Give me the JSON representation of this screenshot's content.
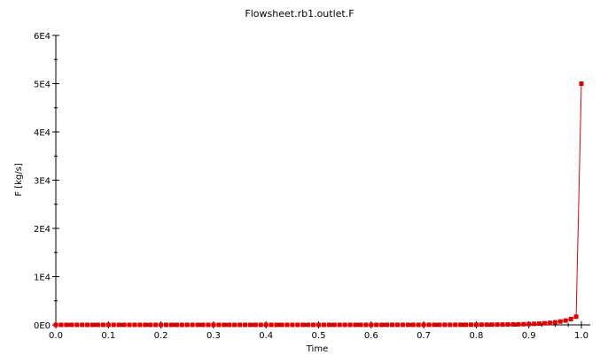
{
  "chart_data": {
    "type": "line",
    "title": "Flowsheet.rb1.outlet.F",
    "xlabel": "Time",
    "ylabel": "F [kg/s]",
    "xlim": [
      0.0,
      1.0
    ],
    "ylim": [
      0,
      60000
    ],
    "xticks": [
      0.0,
      0.1,
      0.2,
      0.3,
      0.4,
      0.5,
      0.6,
      0.7,
      0.8,
      0.9,
      1.0
    ],
    "xtick_labels": [
      "0.0",
      "0.1",
      "0.2",
      "0.3",
      "0.4",
      "0.5",
      "0.6",
      "0.7",
      "0.8",
      "0.9",
      "1.0"
    ],
    "yticks": [
      0,
      10000,
      20000,
      30000,
      40000,
      50000,
      60000
    ],
    "ytick_labels": [
      "0E0",
      "1E4",
      "2E4",
      "3E4",
      "4E4",
      "5E4",
      "6E4"
    ],
    "grid": false,
    "series": [
      {
        "color": "#e00000",
        "marker": "square",
        "x": [
          0.0,
          0.01,
          0.02,
          0.03,
          0.04,
          0.05,
          0.06,
          0.07,
          0.08,
          0.09,
          0.1,
          0.11,
          0.12,
          0.13,
          0.14,
          0.15,
          0.16,
          0.17,
          0.18,
          0.19,
          0.2,
          0.21,
          0.22,
          0.23,
          0.24,
          0.25,
          0.26,
          0.27,
          0.28,
          0.29,
          0.3,
          0.31,
          0.32,
          0.33,
          0.34,
          0.35,
          0.36,
          0.37,
          0.38,
          0.39,
          0.4,
          0.41,
          0.42,
          0.43,
          0.44,
          0.45,
          0.46,
          0.47,
          0.48,
          0.49,
          0.5,
          0.51,
          0.52,
          0.53,
          0.54,
          0.55,
          0.56,
          0.57,
          0.58,
          0.59,
          0.6,
          0.61,
          0.62,
          0.63,
          0.64,
          0.65,
          0.66,
          0.67,
          0.68,
          0.69,
          0.7,
          0.71,
          0.72,
          0.73,
          0.74,
          0.75,
          0.76,
          0.77,
          0.78,
          0.79,
          0.8,
          0.81,
          0.82,
          0.83,
          0.84,
          0.85,
          0.86,
          0.87,
          0.88,
          0.89,
          0.9,
          0.91,
          0.92,
          0.93,
          0.94,
          0.95,
          0.96,
          0.97,
          0.98,
          0.99,
          1.0
        ],
        "y": [
          10,
          10,
          10,
          10,
          10,
          10,
          10,
          10,
          10,
          10,
          10,
          10,
          10,
          10,
          10,
          10,
          10,
          10,
          10,
          10,
          10,
          10,
          10,
          10,
          10,
          10,
          10,
          10,
          10,
          10,
          10,
          10,
          10,
          10,
          10,
          10,
          10,
          10,
          10,
          10,
          10,
          10,
          10,
          10,
          10,
          10,
          10,
          10,
          10,
          10,
          10,
          11,
          11,
          11,
          11,
          11,
          11,
          12,
          12,
          12,
          12,
          13,
          13,
          13,
          14,
          14,
          15,
          15,
          16,
          17,
          18,
          19,
          20,
          21,
          23,
          25,
          27,
          29,
          32,
          36,
          40,
          45,
          50,
          57,
          65,
          75,
          87,
          102,
          120,
          145,
          176,
          215,
          265,
          335,
          420,
          535,
          700,
          900,
          1200,
          1700,
          50000
        ]
      }
    ]
  }
}
